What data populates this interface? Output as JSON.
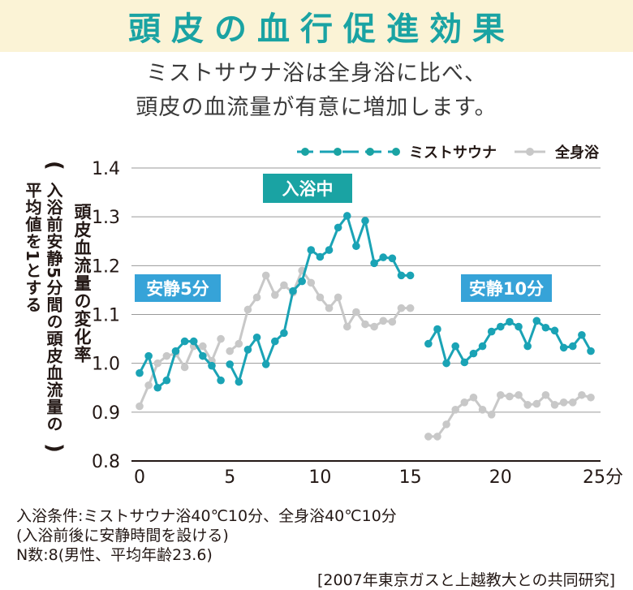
{
  "title": "頭皮の血行促進効果",
  "subtitle": [
    "ミストサウナ浴は全身浴に比べ、",
    "頭皮の血流量が有意に増加します。"
  ],
  "ylabel": {
    "paren_open": "(",
    "line1": "入浴前安静5分間の頭皮血流量の",
    "line2": "平均値を1とする",
    "paren_close": ")",
    "main": "頭皮血流量の変化率"
  },
  "notes": [
    "入浴条件:ミストサウナ浴40℃10分、全身浴40℃10分",
    "(入浴前後に安静時間を設ける)",
    "N数:8(男性、平均年齢23.6)"
  ],
  "source": "[2007年東京ガスと上越教大との共同研究]",
  "colors": {
    "mist": "#1aa3b5",
    "mist_dark": "#1aa3a3",
    "mist_light": "#36a3d8",
    "whole": "#c8c8c8",
    "grid": "#9a9a9a",
    "title_bg": "#fbf3d6"
  },
  "chart_data": {
    "type": "line",
    "ylim": [
      0.8,
      1.4
    ],
    "yticks": [
      "0.8",
      "0.9",
      "1.0",
      "1.1",
      "1.2",
      "1.3",
      "1.4"
    ],
    "xlim": [
      0,
      25
    ],
    "xticks": [
      "0",
      "5",
      "10",
      "15",
      "20",
      "25分"
    ],
    "grid": true,
    "legend_position": "top-right",
    "phases": [
      {
        "label": "安静5分",
        "range": [
          0,
          4.5
        ]
      },
      {
        "label": "入浴中",
        "range": [
          5,
          15
        ]
      },
      {
        "label": "安静10分",
        "range": [
          16,
          25
        ]
      }
    ],
    "series": [
      {
        "name": "ミストサウナ",
        "segments": [
          {
            "x": [
              0,
              0.5,
              1,
              1.5,
              2,
              2.5,
              3,
              3.5,
              4,
              4.5
            ],
            "y": [
              0.98,
              1.015,
              0.95,
              0.965,
              1.025,
              1.045,
              1.045,
              1.015,
              0.995,
              0.965
            ]
          },
          {
            "x": [
              5,
              5.5,
              6,
              6.5,
              7,
              7.5,
              8,
              8.5,
              9,
              9.5,
              10,
              10.5,
              11,
              11.5,
              12,
              12.5,
              13,
              13.5,
              14,
              14.5,
              15
            ],
            "y": [
              0.998,
              0.962,
              1.028,
              1.053,
              0.998,
              1.045,
              1.062,
              1.148,
              1.168,
              1.232,
              1.218,
              1.232,
              1.278,
              1.302,
              1.24,
              1.292,
              1.205,
              1.217,
              1.215,
              1.18,
              1.18
            ]
          },
          {
            "x": [
              16,
              16.5,
              17,
              17.5,
              18,
              18.5,
              19,
              19.5,
              20,
              20.5,
              21,
              21.5,
              22,
              22.5,
              23,
              23.5,
              24,
              24.5,
              25
            ],
            "y": [
              1.04,
              1.07,
              1.0,
              1.035,
              1.002,
              1.02,
              1.035,
              1.065,
              1.075,
              1.085,
              1.075,
              1.035,
              1.087,
              1.073,
              1.067,
              1.032,
              1.035,
              1.058,
              1.025
            ]
          }
        ]
      },
      {
        "name": "全身浴",
        "segments": [
          {
            "x": [
              0,
              0.5,
              1,
              1.5,
              2,
              2.5,
              3,
              3.5,
              4,
              4.5
            ],
            "y": [
              0.912,
              0.955,
              1.0,
              1.015,
              1.02,
              0.992,
              1.035,
              1.035,
              1.005,
              1.05
            ]
          },
          {
            "x": [
              5,
              5.5,
              6,
              6.5,
              7,
              7.5,
              8,
              8.5,
              9,
              9.5,
              10,
              10.5,
              11,
              11.5,
              12,
              12.5,
              13,
              13.5,
              14,
              14.5,
              15
            ],
            "y": [
              1.025,
              1.04,
              1.11,
              1.135,
              1.18,
              1.14,
              1.16,
              1.145,
              1.19,
              1.165,
              1.135,
              1.113,
              1.135,
              1.075,
              1.105,
              1.08,
              1.075,
              1.087,
              1.085,
              1.113,
              1.113
            ]
          },
          {
            "x": [
              16,
              16.5,
              17,
              17.5,
              18,
              18.5,
              19,
              19.5,
              20,
              20.5,
              21,
              21.5,
              22,
              22.5,
              23,
              23.5,
              24,
              24.5,
              25
            ],
            "y": [
              0.85,
              0.85,
              0.875,
              0.905,
              0.92,
              0.93,
              0.905,
              0.895,
              0.935,
              0.932,
              0.935,
              0.915,
              0.917,
              0.935,
              0.915,
              0.92,
              0.92,
              0.935,
              0.93
            ]
          }
        ]
      }
    ]
  }
}
